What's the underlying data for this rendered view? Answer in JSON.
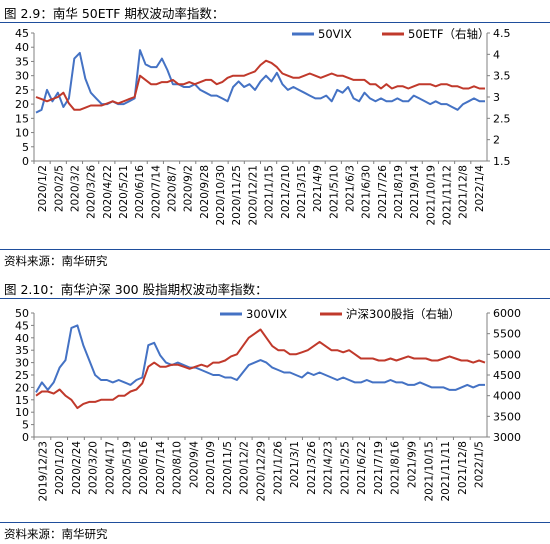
{
  "figures": [
    {
      "caption": "图 2.9：南华 50ETF 期权波动率指数：",
      "source": "资料来源：南华研究"
    },
    {
      "caption": "图 2.10：南华沪深 300 股指期权波动率指数：",
      "source": "资料来源：南华研究"
    }
  ],
  "colors": {
    "vix": "#4472c4",
    "index": "#c0392b",
    "rule": "#1f4e9c"
  },
  "chart_data": [
    {
      "type": "line",
      "title": "",
      "x_labels": [
        "2020/1/2",
        "2020/2/5",
        "2020/3/2",
        "2020/3/26",
        "2020/4/22",
        "2020/5/21",
        "2020/6/16",
        "2020/7/14",
        "2020/8/7",
        "2020/9/2",
        "2020/9/28",
        "2020/10/30",
        "2020/11/25",
        "2020/12/21",
        "2021/1/15",
        "2021/2/10",
        "2021/3/15",
        "2021/4/9",
        "2021/5/10",
        "2021/6/3",
        "2021/6/30",
        "2021/7/26",
        "2021/8/19",
        "2021/9/14",
        "2021/10/19",
        "2021/11/12",
        "2021/12/8",
        "2022/1/4"
      ],
      "y_left": {
        "ticks": [
          0,
          5,
          10,
          15,
          20,
          25,
          30,
          35,
          40,
          45
        ],
        "range": [
          0,
          45
        ]
      },
      "y_right": {
        "ticks": [
          "1.5",
          "2",
          "2.5",
          "3",
          "3.5",
          "4",
          "4.5"
        ],
        "range": [
          1.5,
          4.5
        ]
      },
      "legend_position": "top-right",
      "series": [
        {
          "name": "50VIX",
          "axis": "left",
          "color": "#4472c4",
          "values": [
            17,
            18,
            25,
            21,
            24,
            19,
            22,
            36,
            38,
            29,
            24,
            22,
            20,
            20,
            21,
            20,
            20,
            21,
            22,
            39,
            34,
            33,
            33,
            36,
            32,
            27,
            27,
            26,
            26,
            27,
            25,
            24,
            23,
            23,
            22,
            21,
            26,
            28,
            26,
            27,
            25,
            28,
            30,
            28,
            31,
            27,
            25,
            26,
            25,
            24,
            23,
            22,
            22,
            23,
            21,
            25,
            24,
            26,
            22,
            21,
            24,
            22,
            21,
            22,
            21,
            21,
            22,
            21,
            21,
            23,
            22,
            21,
            20,
            21,
            20,
            20,
            19,
            18,
            20,
            21,
            22,
            21,
            21
          ]
        },
        {
          "name": "50ETF（右轴）",
          "axis": "right",
          "color": "#c0392b",
          "values": [
            3.0,
            2.95,
            2.9,
            2.95,
            3.0,
            3.1,
            2.85,
            2.7,
            2.7,
            2.75,
            2.8,
            2.8,
            2.8,
            2.85,
            2.9,
            2.85,
            2.9,
            2.95,
            3.0,
            3.5,
            3.4,
            3.3,
            3.3,
            3.35,
            3.35,
            3.4,
            3.3,
            3.3,
            3.35,
            3.3,
            3.35,
            3.4,
            3.4,
            3.3,
            3.35,
            3.45,
            3.5,
            3.5,
            3.5,
            3.55,
            3.6,
            3.75,
            3.85,
            3.8,
            3.7,
            3.55,
            3.5,
            3.45,
            3.45,
            3.5,
            3.55,
            3.5,
            3.45,
            3.5,
            3.55,
            3.5,
            3.5,
            3.45,
            3.4,
            3.4,
            3.4,
            3.3,
            3.3,
            3.2,
            3.3,
            3.2,
            3.25,
            3.25,
            3.2,
            3.25,
            3.3,
            3.3,
            3.3,
            3.25,
            3.3,
            3.3,
            3.25,
            3.25,
            3.2,
            3.2,
            3.25,
            3.2,
            3.2
          ]
        }
      ]
    },
    {
      "type": "line",
      "title": "",
      "x_labels": [
        "2019/12/23",
        "2020/1/20",
        "2020/2/24",
        "2020/3/20",
        "2020/4/17",
        "2020/5/19",
        "2020/6/16",
        "2020/7/14",
        "2020/8/10",
        "2020/9/4",
        "2020/10/9",
        "2020/11/5",
        "2020/12/2",
        "2020/12/29",
        "2021/1/26",
        "2021/3/1",
        "2021/3/26",
        "2021/4/23",
        "2021/5/25",
        "2021/6/22",
        "2021/7/19",
        "2021/8/16",
        "2021/9/9",
        "2021/10/15",
        "2021/11/11",
        "2021/12/8",
        "2022/1/5"
      ],
      "y_left": {
        "ticks": [
          0,
          5,
          10,
          15,
          20,
          25,
          30,
          35,
          40,
          45,
          50
        ],
        "range": [
          0,
          50
        ]
      },
      "y_right": {
        "ticks": [
          3000,
          3500,
          4000,
          4500,
          5000,
          5500,
          6000
        ],
        "range": [
          3000,
          6000
        ]
      },
      "legend_position": "top-right",
      "series": [
        {
          "name": "300VIX",
          "axis": "left",
          "color": "#4472c4",
          "values": [
            18,
            22,
            19,
            22,
            28,
            31,
            44,
            45,
            37,
            31,
            25,
            23,
            23,
            22,
            23,
            22,
            21,
            23,
            24,
            37,
            38,
            33,
            30,
            29,
            30,
            29,
            28,
            28,
            27,
            26,
            25,
            25,
            24,
            24,
            23,
            26,
            29,
            30,
            31,
            30,
            28,
            27,
            26,
            26,
            25,
            24,
            26,
            25,
            26,
            25,
            24,
            23,
            24,
            23,
            22,
            22,
            23,
            22,
            22,
            22,
            23,
            22,
            22,
            21,
            21,
            22,
            21,
            20,
            20,
            20,
            19,
            19,
            20,
            21,
            20,
            21,
            21
          ]
        },
        {
          "name": "沪深300股指（右轴）",
          "axis": "right",
          "color": "#c0392b",
          "values": [
            4000,
            4100,
            4100,
            4050,
            4150,
            4000,
            3900,
            3700,
            3800,
            3850,
            3850,
            3900,
            3900,
            3900,
            4000,
            4000,
            4100,
            4150,
            4300,
            4700,
            4800,
            4700,
            4700,
            4750,
            4750,
            4700,
            4650,
            4700,
            4750,
            4700,
            4800,
            4800,
            4850,
            4950,
            5000,
            5200,
            5400,
            5500,
            5600,
            5400,
            5200,
            5100,
            5100,
            5000,
            5000,
            5050,
            5100,
            5200,
            5300,
            5200,
            5100,
            5100,
            5050,
            5100,
            5000,
            4900,
            4900,
            4900,
            4850,
            4850,
            4900,
            4850,
            4900,
            4950,
            4900,
            4900,
            4900,
            4850,
            4850,
            4900,
            4950,
            4900,
            4850,
            4850,
            4800,
            4850,
            4800
          ]
        }
      ]
    }
  ]
}
